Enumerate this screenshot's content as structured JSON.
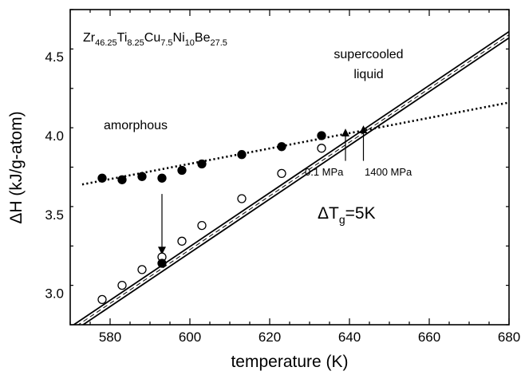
{
  "chart_data": {
    "type": "scatter",
    "title": "",
    "xlabel": "temperature (K)",
    "ylabel": "ΔH (kJ/g-atom)",
    "xlim": [
      570,
      680
    ],
    "ylim": [
      2.8,
      4.8
    ],
    "xticks": [
      580,
      600,
      620,
      640,
      660,
      680
    ],
    "yticks": [
      3.0,
      3.5,
      4.0,
      4.5
    ],
    "xtick_labels": [
      "580",
      "600",
      "620",
      "640",
      "660",
      "680"
    ],
    "ytick_labels": [
      "3.0",
      "3.5",
      "4.0",
      "4.5"
    ],
    "grid": false,
    "composition": {
      "parts": [
        {
          "t": "Zr",
          "sub": false
        },
        {
          "t": "46.25",
          "sub": true
        },
        {
          "t": "Ti",
          "sub": false
        },
        {
          "t": "8.25",
          "sub": true
        },
        {
          "t": "Cu",
          "sub": false
        },
        {
          "t": "7.5",
          "sub": true
        },
        {
          "t": "Ni",
          "sub": false
        },
        {
          "t": "10",
          "sub": true
        },
        {
          "t": "Be",
          "sub": false
        },
        {
          "t": "27.5",
          "sub": true
        }
      ]
    },
    "delta_tg": {
      "prefix": "ΔT",
      "sub": "g",
      "suffix": "=5K"
    },
    "annotations": {
      "amorphous": "amorphous",
      "supercooled_1": "supercooled",
      "supercooled_2": "liquid",
      "p_low": "0.1 MPa",
      "p_high": "1400 MPa"
    },
    "series": [
      {
        "marker": "filled-circle",
        "x": [
          578,
          583,
          588,
          593,
          598,
          603,
          613,
          623,
          633
        ],
        "y": [
          3.73,
          3.72,
          3.74,
          3.73,
          3.78,
          3.82,
          3.88,
          3.93,
          4.0
        ]
      },
      {
        "marker": "open-circle",
        "x": [
          578,
          583,
          588,
          593,
          598,
          603,
          613,
          623,
          633
        ],
        "y": [
          2.96,
          3.05,
          3.15,
          3.23,
          3.33,
          3.43,
          3.6,
          3.76,
          3.92
        ]
      },
      {
        "marker": "filled-circle",
        "x": [
          593
        ],
        "y": [
          3.19
        ]
      }
    ],
    "lines": [
      {
        "style": "dotted",
        "x": [
          573,
          680
        ],
        "y": [
          3.69,
          4.21
        ]
      },
      {
        "style": "solid",
        "x": [
          570,
          680
        ],
        "y": [
          2.785,
          4.66
        ]
      },
      {
        "style": "solid",
        "x": [
          570,
          680
        ],
        "y": [
          2.745,
          4.62
        ]
      },
      {
        "style": "dashed",
        "x": [
          570,
          680
        ],
        "y": [
          2.765,
          4.64
        ]
      }
    ],
    "arrows": [
      {
        "x": 593,
        "y_from": 3.63,
        "y_to": 3.27
      },
      {
        "x": 639,
        "y_from": 3.84,
        "y_to": 4.02
      },
      {
        "x": 643.5,
        "y_from": 3.84,
        "y_to": 4.04
      }
    ]
  }
}
